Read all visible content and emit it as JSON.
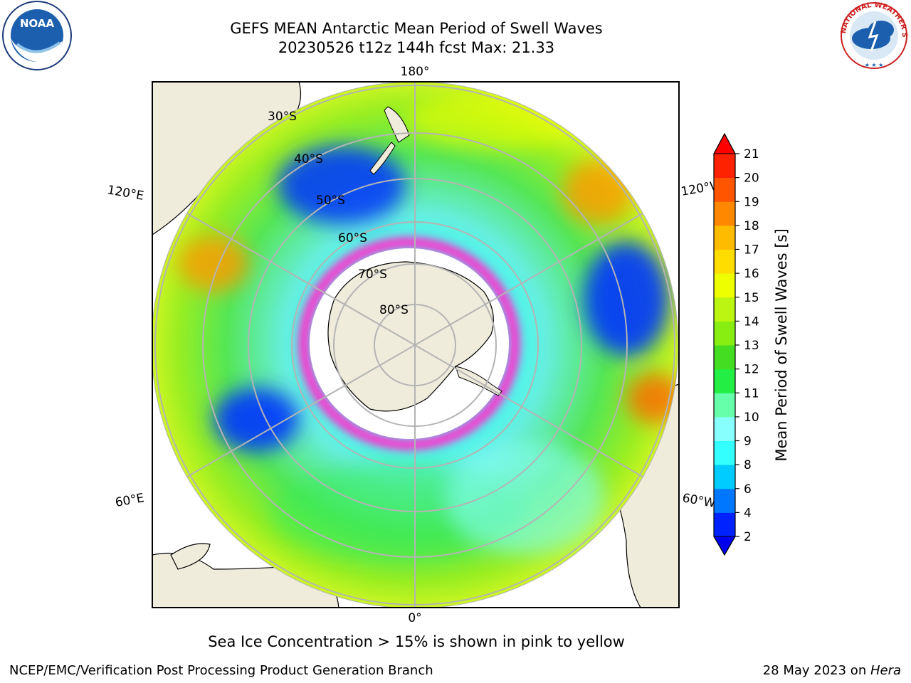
{
  "title": {
    "line1": "GEFS MEAN Antarctic Mean Period of Swell Waves",
    "line2": "20230526 t12z 144h fcst   Max: 21.33"
  },
  "map": {
    "projection": "south polar stereographic",
    "meridian_labels": [
      "180°",
      "120°E",
      "120°W",
      "60°E",
      "60°W",
      "0°"
    ],
    "parallel_labels": [
      "30°S",
      "40°S",
      "50°S",
      "60°S",
      "70°S",
      "80°S"
    ],
    "land_color": "#efecdc",
    "ice_edge_colors": [
      "#ff33cc",
      "#ff99ff",
      "#ffaa33"
    ]
  },
  "colorbar": {
    "label": "Mean Period of Swell Waves [s]",
    "ticks": [
      "2",
      "4",
      "6",
      "8",
      "9",
      "10",
      "11",
      "12",
      "13",
      "14",
      "15",
      "16",
      "17",
      "18",
      "19",
      "20",
      "21"
    ],
    "colors": [
      "#0022ff",
      "#0077ff",
      "#00ccff",
      "#33ffff",
      "#88ffff",
      "#66ffaa",
      "#22ee44",
      "#44dd22",
      "#88ee11",
      "#bbf511",
      "#eeff00",
      "#ffdd00",
      "#ffbb00",
      "#ff8800",
      "#ff5500",
      "#ff2200"
    ],
    "under_color": "#0000ee",
    "over_color": "#ff0000"
  },
  "footer": {
    "note": "Sea Ice Concentration > 15% is shown in pink to yellow",
    "left": "NCEP/EMC/Verification Post Processing Product Generation Branch",
    "right_prefix": "28 May 2023 on ",
    "right_machine": "Hera"
  },
  "logos": {
    "left": "NOAA",
    "right": "NATIONAL WEATHER SERVICE"
  }
}
